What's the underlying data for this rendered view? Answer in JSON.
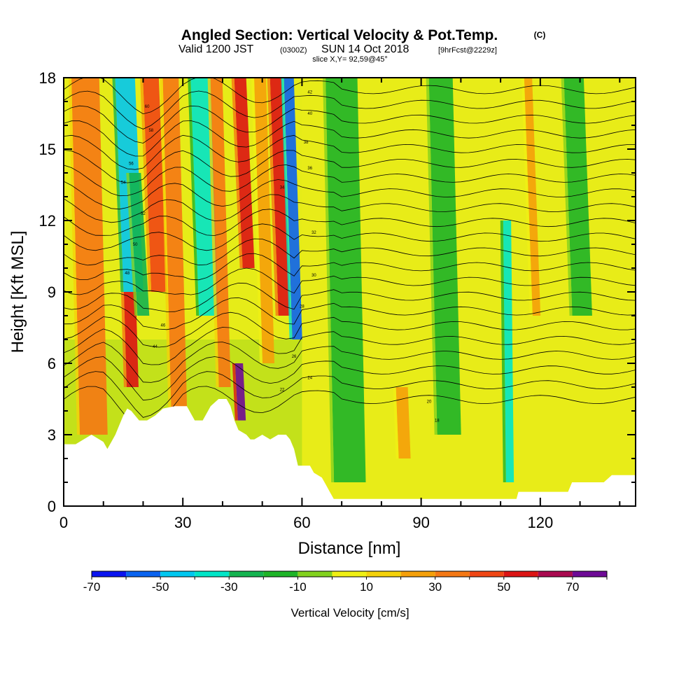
{
  "title": {
    "main": "Angled Section: Vertical Velocity & Pot.Temp.",
    "mark": "(C)",
    "valid_prefix": "Valid 1200 JST",
    "valid_z": "(0300Z)",
    "valid_date": "SUN 14 Oct 2018",
    "forecast": "[9hrFcst@2229z]",
    "slice": "slice X,Y= 92,59@45°"
  },
  "chart_data": {
    "type": "heatmap",
    "xlabel": "Distance [nm]",
    "ylabel": "Height [Kft MSL]",
    "xlim": [
      0,
      144
    ],
    "ylim": [
      0,
      18
    ],
    "x_ticks": [
      0,
      30,
      60,
      90,
      120
    ],
    "y_ticks": [
      0,
      3,
      6,
      9,
      12,
      15,
      18
    ],
    "colorbar": {
      "title": "Vertical Velocity [cm/s]",
      "levels": [
        -70,
        -60,
        -50,
        -40,
        -30,
        -20,
        -10,
        0,
        10,
        20,
        30,
        40,
        50,
        60,
        70,
        80
      ],
      "tick_labels": [
        -70,
        -50,
        -30,
        -10,
        10,
        30,
        50,
        70
      ],
      "colors": [
        "#0a14f0",
        "#0a64f0",
        "#00c8f0",
        "#00e6c8",
        "#14b450",
        "#1eb428",
        "#82d21e",
        "#f0f014",
        "#f5d20a",
        "#f5a00a",
        "#f57814",
        "#f04614",
        "#dc1414",
        "#aa0a50",
        "#6e0a96"
      ]
    },
    "vertical_velocity_bands": [
      {
        "x_nm": 3,
        "w": 7,
        "bottom_kft": 3,
        "top_kft": 18,
        "v": 30
      },
      {
        "x_nm": 14,
        "w": 5,
        "bottom_kft": 9,
        "top_kft": 18,
        "v": -50
      },
      {
        "x_nm": 15.5,
        "w": 3,
        "bottom_kft": 5,
        "top_kft": 9,
        "v": 55
      },
      {
        "x_nm": 17.5,
        "w": 3,
        "bottom_kft": 8,
        "top_kft": 14,
        "v": -30
      },
      {
        "x_nm": 21,
        "w": 4,
        "bottom_kft": 9,
        "top_kft": 18,
        "v": 45
      },
      {
        "x_nm": 26,
        "w": 4,
        "bottom_kft": 4,
        "top_kft": 18,
        "v": 30
      },
      {
        "x_nm": 33,
        "w": 5,
        "bottom_kft": 8,
        "top_kft": 18,
        "v": -35
      },
      {
        "x_nm": 38,
        "w": 3,
        "bottom_kft": 5,
        "top_kft": 18,
        "v": 30
      },
      {
        "x_nm": 44,
        "w": 3,
        "bottom_kft": 10,
        "top_kft": 18,
        "v": 55
      },
      {
        "x_nm": 43.5,
        "w": 2,
        "bottom_kft": 3.6,
        "top_kft": 6,
        "v": 70
      },
      {
        "x_nm": 49,
        "w": 3,
        "bottom_kft": 6,
        "top_kft": 18,
        "v": 25
      },
      {
        "x_nm": 53,
        "w": 3,
        "bottom_kft": 8,
        "top_kft": 18,
        "v": 50
      },
      {
        "x_nm": 56.5,
        "w": 2.5,
        "bottom_kft": 7,
        "top_kft": 18,
        "v": -55
      },
      {
        "x_nm": 67,
        "w": 8,
        "bottom_kft": 1,
        "top_kft": 18,
        "v": -15
      },
      {
        "x_nm": 84,
        "w": 3,
        "bottom_kft": 2,
        "top_kft": 5,
        "v": 25
      },
      {
        "x_nm": 93,
        "w": 6,
        "bottom_kft": 3,
        "top_kft": 18,
        "v": -15
      },
      {
        "x_nm": 111,
        "w": 2,
        "bottom_kft": 1,
        "top_kft": 12,
        "v": -35
      },
      {
        "x_nm": 117,
        "w": 2,
        "bottom_kft": 8,
        "top_kft": 18,
        "v": 25
      },
      {
        "x_nm": 127,
        "w": 5,
        "bottom_kft": 8,
        "top_kft": 18,
        "v": -15
      }
    ],
    "terrain_kft": [
      [
        0,
        2.6
      ],
      [
        3,
        2.6
      ],
      [
        5,
        2.8
      ],
      [
        7,
        3.0
      ],
      [
        10,
        2.7
      ],
      [
        11,
        2.4
      ],
      [
        12,
        2.7
      ],
      [
        13,
        3.0
      ],
      [
        14,
        3.4
      ],
      [
        15,
        3.8
      ],
      [
        16,
        4.1
      ],
      [
        17,
        4.0
      ],
      [
        18,
        3.8
      ],
      [
        19,
        3.6
      ],
      [
        21,
        3.6
      ],
      [
        23,
        3.8
      ],
      [
        25,
        4.1
      ],
      [
        28,
        4.2
      ],
      [
        31,
        4.2
      ],
      [
        33,
        3.6
      ],
      [
        35,
        3.6
      ],
      [
        37,
        4.2
      ],
      [
        39,
        4.5
      ],
      [
        41,
        4.5
      ],
      [
        42,
        4.2
      ],
      [
        43,
        3.6
      ],
      [
        44,
        3.2
      ],
      [
        46,
        3.0
      ],
      [
        47,
        2.8
      ],
      [
        48,
        2.8
      ],
      [
        50,
        3.0
      ],
      [
        52,
        2.8
      ],
      [
        54,
        3.0
      ],
      [
        56,
        3.0
      ],
      [
        57,
        2.8
      ],
      [
        58,
        2.4
      ],
      [
        59,
        1.7
      ],
      [
        62,
        1.7
      ],
      [
        63,
        1.4
      ],
      [
        65,
        1.2
      ],
      [
        66,
        0.9
      ],
      [
        67,
        0.6
      ],
      [
        68,
        0.3
      ],
      [
        75,
        0.3
      ],
      [
        80,
        0.3
      ],
      [
        90,
        0.3
      ],
      [
        100,
        0.3
      ],
      [
        110,
        0.3
      ],
      [
        114,
        0.3
      ],
      [
        114.5,
        0.6
      ],
      [
        120,
        0.6
      ],
      [
        127,
        0.6
      ],
      [
        128,
        1.0
      ],
      [
        136,
        1.0
      ],
      [
        138,
        1.3
      ],
      [
        144,
        1.3
      ]
    ],
    "contour_labels": [
      "60",
      "58",
      "56",
      "54",
      "52",
      "50",
      "48",
      "46",
      "44",
      "42",
      "40",
      "38",
      "36",
      "34",
      "32",
      "30",
      "28",
      "26",
      "24",
      "22",
      "20",
      "18"
    ]
  }
}
